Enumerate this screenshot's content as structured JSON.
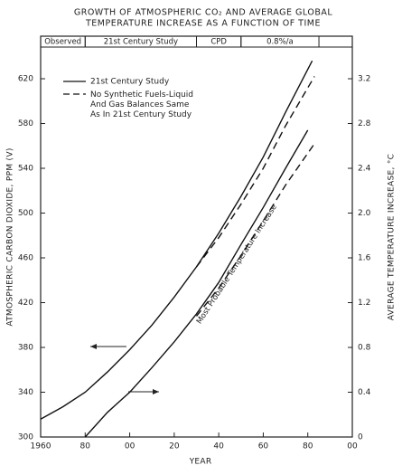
{
  "chart_data": {
    "type": "line",
    "title": [
      "GROWTH OF ATMOSPHERIC CO₂ AND AVERAGE GLOBAL",
      "TEMPERATURE INCREASE AS A FUNCTION OF TIME"
    ],
    "x_label": "YEAR",
    "y_label": "ATMOSPHERIC CARBON DIOXIDE, PPM (V)",
    "y2_label": "AVERAGE TEMPERATURE INCREASE, °C",
    "annotation": "Most Probable Temperature Increase",
    "periods": [
      {
        "label": "Observed",
        "start": 1960,
        "end": 1980
      },
      {
        "label": "21st Century Study",
        "start": 1980,
        "end": 2030
      },
      {
        "label": "CPD",
        "start": 2030,
        "end": 2050
      },
      {
        "label": "0.8%/a",
        "start": 2050,
        "end": 2085
      }
    ],
    "legend": [
      {
        "label": "21st Century Study",
        "style": "solid"
      },
      {
        "label": "No Synthetic Fuels-Liquid And Gas Balances Same As In 21st Century Study",
        "style": "dashed"
      }
    ],
    "color": "#111111",
    "xlim": [
      1960,
      2100
    ],
    "xticks": [
      {
        "value": 1960,
        "label": "1960"
      },
      {
        "value": 1980,
        "label": "80"
      },
      {
        "value": 2000,
        "label": "00"
      },
      {
        "value": 2020,
        "label": "20"
      },
      {
        "value": 2040,
        "label": "40"
      },
      {
        "value": 2060,
        "label": "60"
      },
      {
        "value": 2080,
        "label": "80"
      },
      {
        "value": 2100,
        "label": "00"
      }
    ],
    "ylim": [
      300,
      658
    ],
    "yticks": [
      300,
      340,
      380,
      420,
      460,
      500,
      540,
      580,
      620
    ],
    "y2lim": [
      0,
      3.58
    ],
    "y2ticks": [
      0,
      0.4,
      0.8,
      1.2,
      1.6,
      {
        "value": 2,
        "label": "2.0"
      },
      2.4,
      2.8,
      3.2
    ],
    "series": [
      {
        "style": "solid",
        "x": [
          1960,
          1970,
          1980,
          1990,
          2000,
          2010,
          2020,
          2030,
          2040,
          2050,
          2060,
          2070,
          2082
        ],
        "values": [
          316,
          327,
          340,
          358,
          378,
          400,
          425,
          452,
          482,
          515,
          550,
          590,
          636
        ]
      },
      {
        "style": "dashed",
        "x": [
          2030,
          2040,
          2050,
          2060,
          2070,
          2083
        ],
        "values": [
          452,
          478,
          508,
          540,
          578,
          622
        ]
      },
      {
        "style": "solid",
        "axis": "y2",
        "x": [
          1980,
          1990,
          2000,
          2010,
          2020,
          2030,
          2040,
          2050,
          2060,
          2070,
          2080
        ],
        "values": [
          0,
          0.22,
          0.4,
          0.62,
          0.85,
          1.1,
          1.38,
          1.72,
          2.05,
          2.4,
          2.74
        ]
      },
      {
        "style": "dashed",
        "axis": "y2",
        "x": [
          2030,
          2040,
          2050,
          2060,
          2070,
          2083
        ],
        "values": [
          1.08,
          1.33,
          1.62,
          1.93,
          2.25,
          2.62
        ]
      }
    ]
  }
}
